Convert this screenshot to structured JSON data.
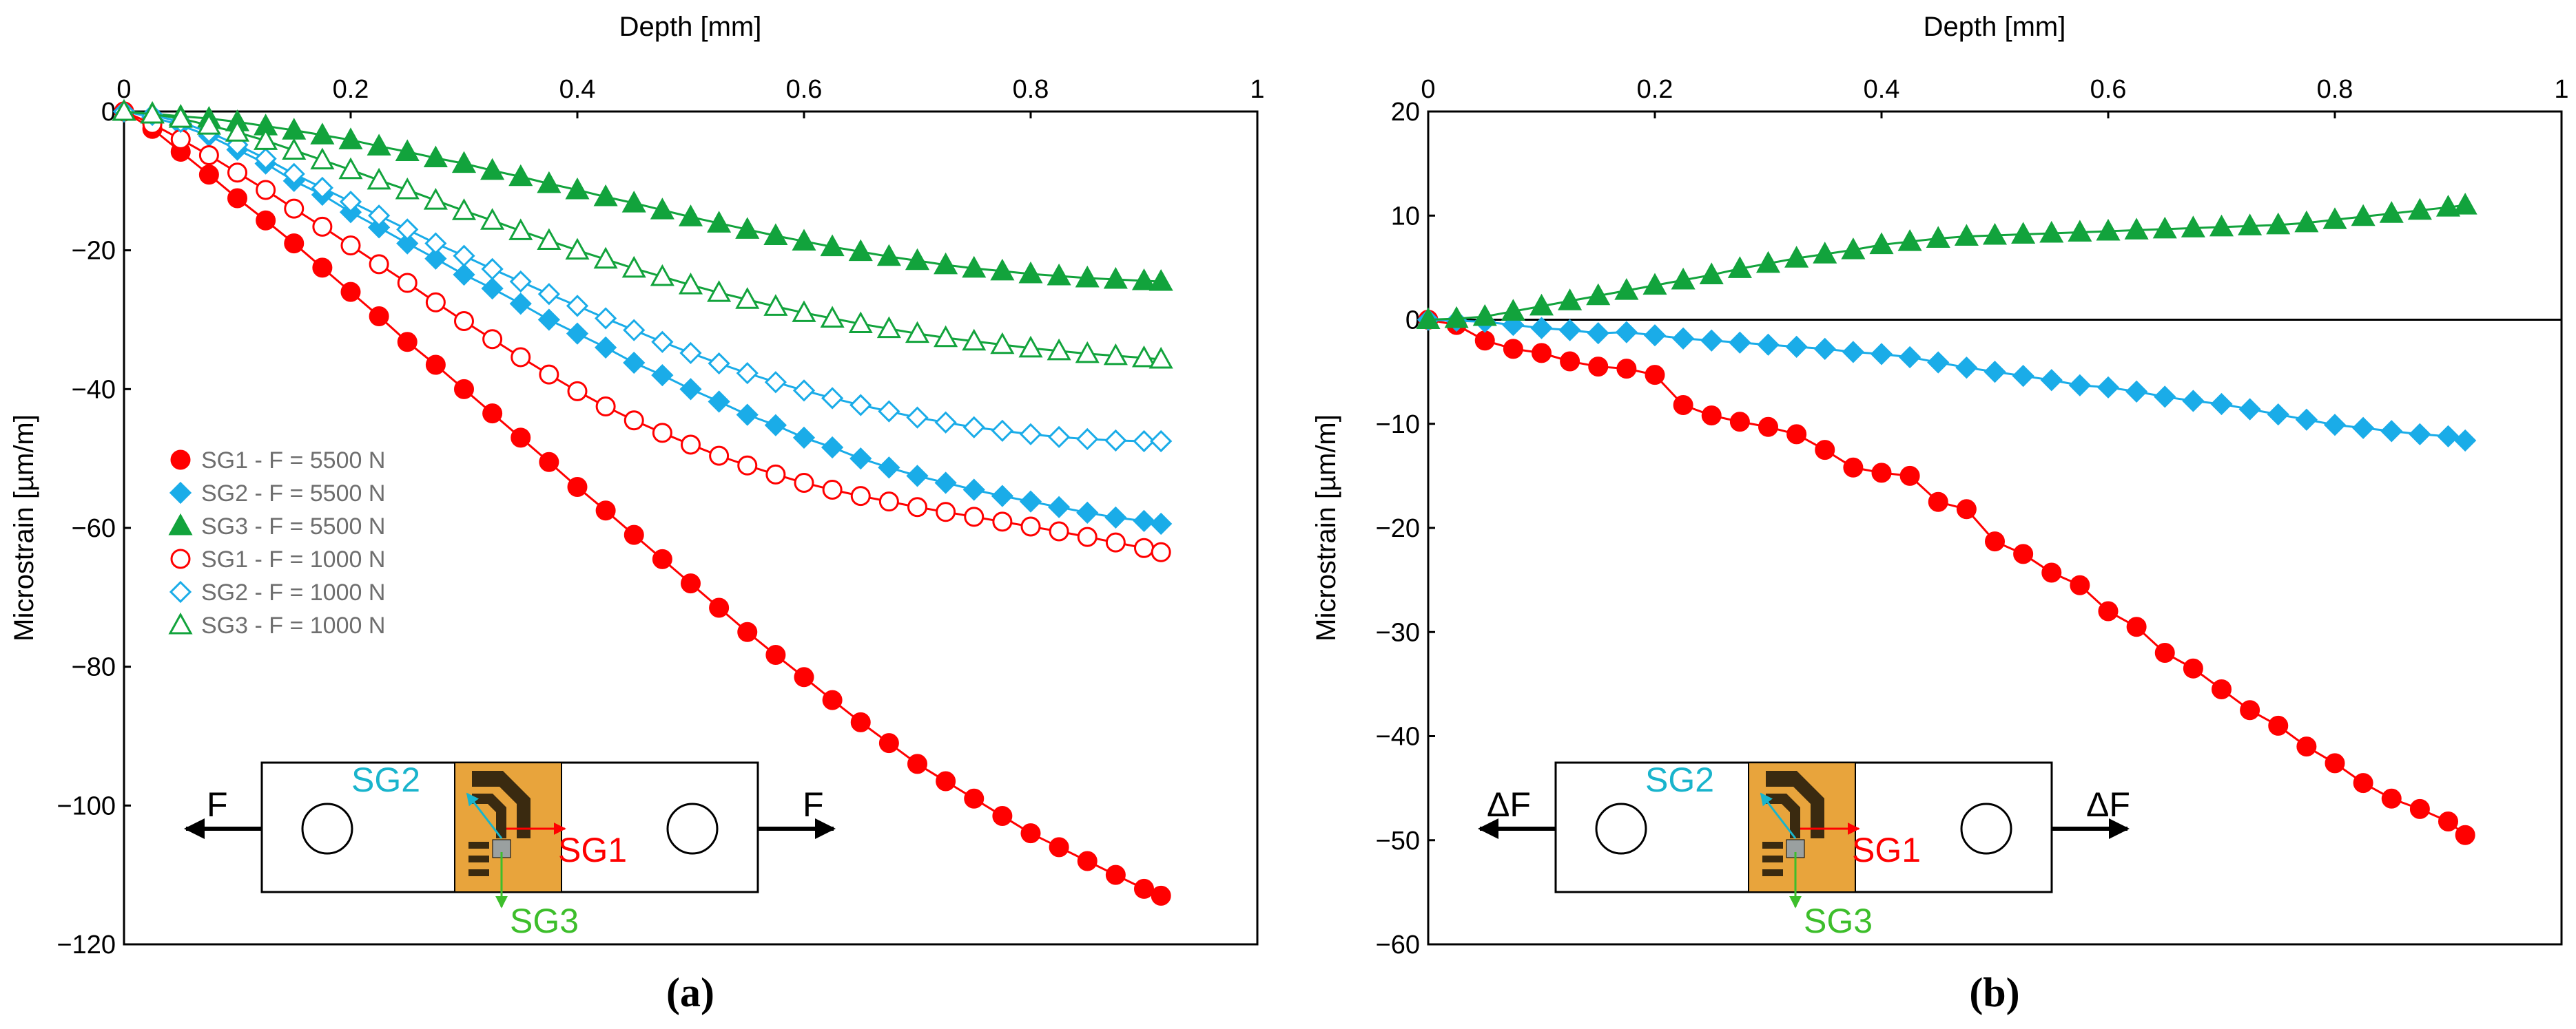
{
  "colors": {
    "sg1": "#ff0000",
    "sg2": "#1aace8",
    "sg3": "#12a33c",
    "sg2_label": "#19b4cc",
    "sg3_label": "#3dbe2b",
    "gauge_fill": "#e8a43c",
    "gauge_dark": "#3a2a10"
  },
  "chart_data": [
    {
      "panel_label": "(a)",
      "type": "scatter",
      "xlabel": "Depth [mm]",
      "ylabel": "Microstrain [µm/m]",
      "xlim": [
        0,
        1
      ],
      "ylim": [
        -120,
        0
      ],
      "xticks": [
        0,
        0.2,
        0.4,
        0.6,
        0.8,
        1
      ],
      "xtick_labels": [
        "0",
        "0.2",
        "0.4",
        "0.6",
        "0.8",
        "1"
      ],
      "yticks": [
        0,
        -20,
        -40,
        -60,
        -80,
        -100,
        -120
      ],
      "ytick_labels": [
        "0",
        "−20",
        "−40",
        "−60",
        "−80",
        "−100",
        "−120"
      ],
      "grid": false,
      "x": [
        0,
        0.025,
        0.05,
        0.075,
        0.1,
        0.125,
        0.15,
        0.175,
        0.2,
        0.225,
        0.25,
        0.275,
        0.3,
        0.325,
        0.35,
        0.375,
        0.4,
        0.425,
        0.45,
        0.475,
        0.5,
        0.525,
        0.55,
        0.575,
        0.6,
        0.625,
        0.65,
        0.675,
        0.7,
        0.725,
        0.75,
        0.775,
        0.8,
        0.825,
        0.85,
        0.875,
        0.9,
        0.915
      ],
      "series": [
        {
          "name": "SG1 - F = 5500 N",
          "marker": "circle",
          "filled": true,
          "color_key": "sg1",
          "values": [
            0,
            -2.5,
            -5.8,
            -9.1,
            -12.5,
            -15.7,
            -19,
            -22.5,
            -26,
            -29.5,
            -33.2,
            -36.5,
            -40,
            -43.5,
            -47,
            -50.5,
            -54.1,
            -57.5,
            -61,
            -64.5,
            -68,
            -71.5,
            -75,
            -78.3,
            -81.5,
            -84.8,
            -88,
            -91,
            -94,
            -96.5,
            -99,
            -101.5,
            -104,
            -106,
            -108,
            -110,
            -112,
            -113
          ]
        },
        {
          "name": "SG2 - F = 5500 N",
          "marker": "diamond",
          "filled": true,
          "color_key": "sg2",
          "values": [
            0,
            -0.8,
            -2,
            -3.5,
            -5.5,
            -7.5,
            -10,
            -12,
            -14.5,
            -16.7,
            -19,
            -21.2,
            -23.5,
            -25.5,
            -27.7,
            -30,
            -32,
            -34,
            -36.2,
            -38,
            -40,
            -41.8,
            -43.7,
            -45.2,
            -47,
            -48.4,
            -50,
            -51.3,
            -52.5,
            -53.5,
            -54.5,
            -55.4,
            -56.2,
            -57,
            -57.8,
            -58.5,
            -59,
            -59.4
          ]
        },
        {
          "name": "SG3 - F = 5500 N",
          "marker": "triangle",
          "filled": true,
          "color_key": "sg3",
          "values": [
            0,
            -0.3,
            -0.7,
            -1,
            -1.5,
            -2.1,
            -2.7,
            -3.4,
            -4.1,
            -5,
            -5.8,
            -6.7,
            -7.5,
            -8.5,
            -9.4,
            -10.4,
            -11.3,
            -12.3,
            -13.2,
            -14.2,
            -15.2,
            -16.1,
            -17,
            -17.9,
            -18.7,
            -19.5,
            -20.2,
            -20.9,
            -21.5,
            -22.1,
            -22.6,
            -23,
            -23.4,
            -23.7,
            -24,
            -24.2,
            -24.4,
            -24.5
          ]
        },
        {
          "name": "SG1 - F = 1000 N",
          "marker": "circle",
          "filled": false,
          "color_key": "sg1",
          "values": [
            0,
            -1.8,
            -4,
            -6.3,
            -8.8,
            -11.3,
            -14,
            -16.6,
            -19.3,
            -22,
            -24.7,
            -27.5,
            -30.2,
            -32.8,
            -35.4,
            -37.9,
            -40.3,
            -42.5,
            -44.5,
            -46.3,
            -48,
            -49.6,
            -51,
            -52.3,
            -53.5,
            -54.5,
            -55.4,
            -56.2,
            -57,
            -57.7,
            -58.4,
            -59.1,
            -59.8,
            -60.5,
            -61.3,
            -62.1,
            -62.9,
            -63.5
          ]
        },
        {
          "name": "SG2 - F = 1000 N",
          "marker": "diamond",
          "filled": false,
          "color_key": "sg2",
          "values": [
            0,
            -0.5,
            -1.5,
            -3,
            -4.8,
            -6.8,
            -9,
            -11,
            -13,
            -15,
            -17,
            -19,
            -20.8,
            -22.7,
            -24.5,
            -26.3,
            -28,
            -29.8,
            -31.5,
            -33.2,
            -34.8,
            -36.3,
            -37.7,
            -39,
            -40.2,
            -41.3,
            -42.3,
            -43.2,
            -44.1,
            -44.8,
            -45.5,
            -46,
            -46.5,
            -46.9,
            -47.2,
            -47.4,
            -47.5,
            -47.5
          ]
        },
        {
          "name": "SG3 - F = 1000 N",
          "marker": "triangle",
          "filled": false,
          "color_key": "sg3",
          "values": [
            0,
            -0.4,
            -1,
            -2,
            -3,
            -4.2,
            -5.6,
            -7,
            -8.4,
            -9.9,
            -11.3,
            -12.8,
            -14.3,
            -15.7,
            -17.2,
            -18.6,
            -20,
            -21.3,
            -22.6,
            -23.8,
            -25,
            -26.1,
            -27.1,
            -28.1,
            -29,
            -29.8,
            -30.6,
            -31.3,
            -32,
            -32.6,
            -33.1,
            -33.6,
            -34.1,
            -34.5,
            -34.9,
            -35.2,
            -35.5,
            -35.7
          ]
        }
      ]
    },
    {
      "panel_label": "(b)",
      "type": "scatter",
      "xlabel": "Depth [mm]",
      "ylabel": "Microstrain [µm/m]",
      "xlim": [
        0,
        1
      ],
      "ylim": [
        -60,
        20
      ],
      "xticks": [
        0,
        0.2,
        0.4,
        0.6,
        0.8,
        1
      ],
      "xtick_labels": [
        "0",
        "0.2",
        "0.4",
        "0.6",
        "0.8",
        "1"
      ],
      "yticks": [
        20,
        10,
        0,
        -10,
        -20,
        -30,
        -40,
        -50,
        -60
      ],
      "ytick_labels": [
        "20",
        "10",
        "0",
        "−10",
        "−20",
        "−30",
        "−40",
        "−50",
        "−60"
      ],
      "grid": false,
      "x": [
        0,
        0.025,
        0.05,
        0.075,
        0.1,
        0.125,
        0.15,
        0.175,
        0.2,
        0.225,
        0.25,
        0.275,
        0.3,
        0.325,
        0.35,
        0.375,
        0.4,
        0.425,
        0.45,
        0.475,
        0.5,
        0.525,
        0.55,
        0.575,
        0.6,
        0.625,
        0.65,
        0.675,
        0.7,
        0.725,
        0.75,
        0.775,
        0.8,
        0.825,
        0.85,
        0.875,
        0.9,
        0.915
      ],
      "series": [
        {
          "name": "SG1",
          "marker": "circle",
          "filled": true,
          "color_key": "sg1",
          "values": [
            0,
            -0.5,
            -2,
            -2.8,
            -3.2,
            -4,
            -4.5,
            -4.7,
            -5.3,
            -8.2,
            -9.2,
            -9.8,
            -10.3,
            -11,
            -12.5,
            -14.2,
            -14.7,
            -15,
            -17.5,
            -18.2,
            -21.3,
            -22.5,
            -24.3,
            -25.5,
            -28,
            -29.5,
            -32,
            -33.5,
            -35.5,
            -37.5,
            -39,
            -41,
            -42.6,
            -44.5,
            -46,
            -47,
            -48.2,
            -49.5
          ]
        },
        {
          "name": "SG2",
          "marker": "diamond",
          "filled": true,
          "color_key": "sg2",
          "values": [
            0,
            -0.1,
            -0.2,
            -0.5,
            -0.8,
            -1,
            -1.3,
            -1.2,
            -1.5,
            -1.8,
            -2,
            -2.2,
            -2.4,
            -2.6,
            -2.8,
            -3.1,
            -3.3,
            -3.6,
            -4.1,
            -4.6,
            -5,
            -5.4,
            -5.8,
            -6.3,
            -6.5,
            -6.9,
            -7.4,
            -7.8,
            -8.1,
            -8.6,
            -9.1,
            -9.6,
            -10.1,
            -10.4,
            -10.7,
            -11,
            -11.2,
            -11.6
          ]
        },
        {
          "name": "SG3",
          "marker": "triangle",
          "filled": true,
          "color_key": "sg3",
          "values": [
            0,
            0.1,
            0.3,
            0.8,
            1.3,
            1.8,
            2.3,
            2.8,
            3.3,
            3.8,
            4.3,
            4.9,
            5.4,
            5.9,
            6.3,
            6.7,
            7.2,
            7.5,
            7.8,
            8,
            8.1,
            8.2,
            8.3,
            8.4,
            8.5,
            8.6,
            8.7,
            8.8,
            8.9,
            9,
            9.1,
            9.3,
            9.6,
            9.9,
            10.2,
            10.5,
            10.8,
            11
          ]
        }
      ]
    }
  ],
  "insets": [
    {
      "left_force": "F",
      "right_force": "F",
      "sg1": "SG1",
      "sg2": "SG2",
      "sg3": "SG3"
    },
    {
      "left_force": "ΔF",
      "right_force": "ΔF",
      "sg1": "SG1",
      "sg2": "SG2",
      "sg3": "SG3"
    }
  ]
}
